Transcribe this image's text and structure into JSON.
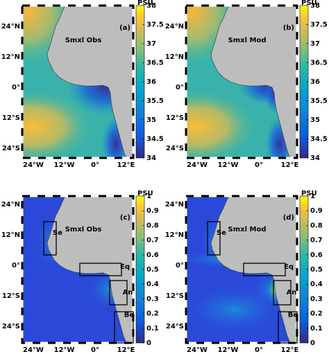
{
  "panels": [
    {
      "title": "Smxl Obs",
      "tag": "(a)"
    },
    {
      "title": "Smxl Mod",
      "tag": "(b)"
    },
    {
      "title": "Smxl Obs",
      "tag": "(c)",
      "regions": [
        "Se",
        "Eq",
        "An",
        "Be"
      ]
    },
    {
      "title": "Smxl Mod",
      "tag": "(d)",
      "regions": [
        "Se",
        "Eq",
        "An",
        "Be"
      ]
    }
  ],
  "colorbars": [
    {
      "unit": "PSU",
      "clim": [
        34,
        38
      ],
      "ticks": [
        34,
        34.5,
        35,
        35.5,
        36,
        36.5,
        37,
        37.5,
        38
      ]
    },
    {
      "unit": "PSU",
      "clim": [
        0,
        1
      ],
      "ticks": [
        0,
        0.1,
        0.2,
        0.3,
        0.4,
        0.5,
        0.6,
        0.7,
        0.8,
        0.9,
        1
      ]
    }
  ],
  "lon_ticks": [
    "24°W",
    "12°W",
    "0°",
    "12°E"
  ],
  "lat_ticks": [
    "24°N",
    "12°N",
    "0°",
    "12°S",
    "24°S"
  ]
}
